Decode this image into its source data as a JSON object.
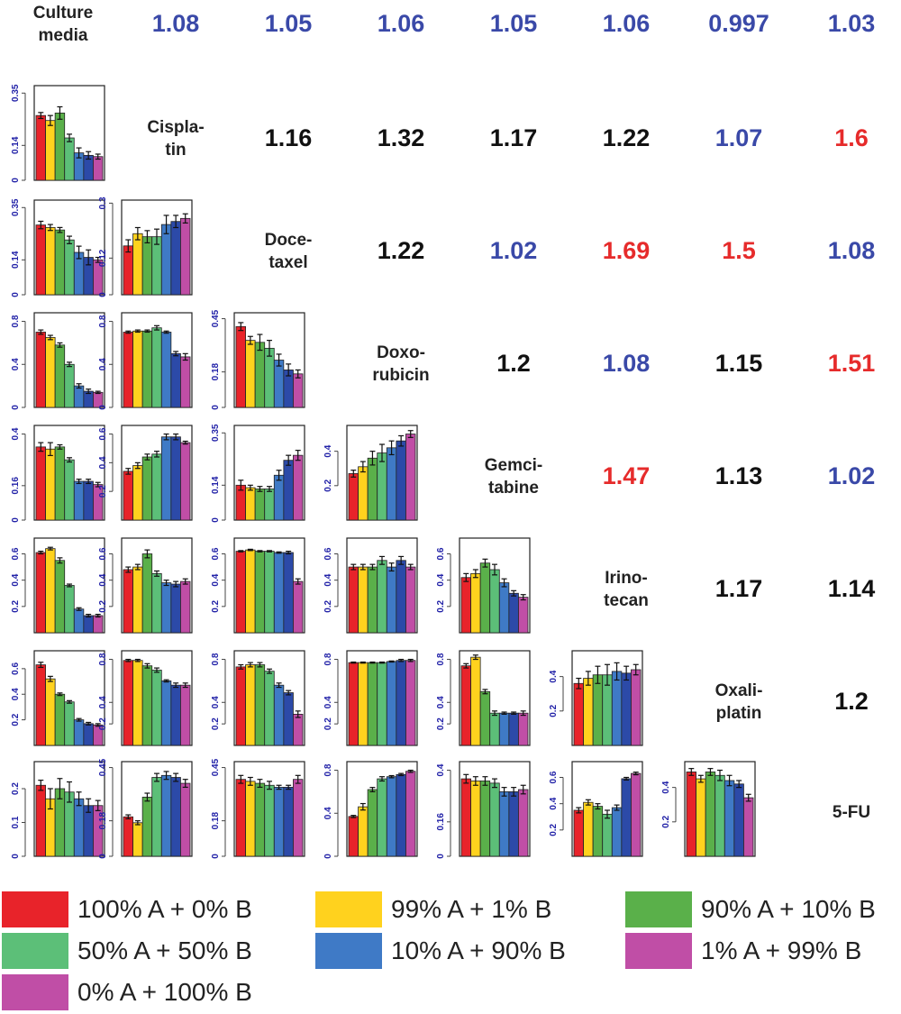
{
  "colors": {
    "ratio_blue": "#3a49a8",
    "ratio_black": "#111111",
    "ratio_red": "#e62b2b",
    "axis_text": "#2323a8",
    "bars": [
      "#e8232a",
      "#ffd21e",
      "#5ab04a",
      "#5cbf78",
      "#3f7ac6",
      "#2c4aa8",
      "#c04ea6"
    ]
  },
  "legend": [
    {
      "label": "100% A + 0% B",
      "color": "#e8232a"
    },
    {
      "label": "99% A + 1% B",
      "color": "#ffd21e"
    },
    {
      "label": "90% A + 10% B",
      "color": "#5ab04a"
    },
    {
      "label": "50% A + 50% B",
      "color": "#5cbf78"
    },
    {
      "label": "10% A + 90% B",
      "color": "#3f7ac6"
    },
    {
      "label": "1% A + 99% B",
      "color": "#c04ea6"
    },
    {
      "label": "0% A + 100% B",
      "color": "#c04ea6"
    }
  ],
  "chart_data": {
    "type": "bar",
    "title": "",
    "labels": [
      "Culture\nmedia",
      "Cispla-\ntin",
      "Doce-\ntaxel",
      "Doxo-\nrubicin",
      "Gemci-\ntabine",
      "Irino-\ntecan",
      "Oxali-\nplatin",
      "5-FU"
    ],
    "ratios": [
      {
        "row": 0,
        "col": 1,
        "text": "1.08",
        "color": "blue"
      },
      {
        "row": 0,
        "col": 2,
        "text": "1.05",
        "color": "blue"
      },
      {
        "row": 0,
        "col": 3,
        "text": "1.06",
        "color": "blue"
      },
      {
        "row": 0,
        "col": 4,
        "text": "1.05",
        "color": "blue"
      },
      {
        "row": 0,
        "col": 5,
        "text": "1.06",
        "color": "blue"
      },
      {
        "row": 0,
        "col": 6,
        "text": "0.997",
        "color": "blue"
      },
      {
        "row": 0,
        "col": 7,
        "text": "1.03",
        "color": "blue"
      },
      {
        "row": 1,
        "col": 2,
        "text": "1.16",
        "color": "black"
      },
      {
        "row": 1,
        "col": 3,
        "text": "1.32",
        "color": "black"
      },
      {
        "row": 1,
        "col": 4,
        "text": "1.17",
        "color": "black"
      },
      {
        "row": 1,
        "col": 5,
        "text": "1.22",
        "color": "black"
      },
      {
        "row": 1,
        "col": 6,
        "text": "1.07",
        "color": "blue"
      },
      {
        "row": 1,
        "col": 7,
        "text": "1.6",
        "color": "red"
      },
      {
        "row": 2,
        "col": 3,
        "text": "1.22",
        "color": "black"
      },
      {
        "row": 2,
        "col": 4,
        "text": "1.02",
        "color": "blue"
      },
      {
        "row": 2,
        "col": 5,
        "text": "1.69",
        "color": "red"
      },
      {
        "row": 2,
        "col": 6,
        "text": "1.5",
        "color": "red"
      },
      {
        "row": 2,
        "col": 7,
        "text": "1.08",
        "color": "blue"
      },
      {
        "row": 3,
        "col": 4,
        "text": "1.2",
        "color": "black"
      },
      {
        "row": 3,
        "col": 5,
        "text": "1.08",
        "color": "blue"
      },
      {
        "row": 3,
        "col": 6,
        "text": "1.15",
        "color": "black"
      },
      {
        "row": 3,
        "col": 7,
        "text": "1.51",
        "color": "red"
      },
      {
        "row": 4,
        "col": 5,
        "text": "1.47",
        "color": "red"
      },
      {
        "row": 4,
        "col": 6,
        "text": "1.13",
        "color": "black"
      },
      {
        "row": 4,
        "col": 7,
        "text": "1.02",
        "color": "blue"
      },
      {
        "row": 5,
        "col": 6,
        "text": "1.17",
        "color": "black"
      },
      {
        "row": 5,
        "col": 7,
        "text": "1.14",
        "color": "black"
      },
      {
        "row": 6,
        "col": 7,
        "text": "1.2",
        "color": "black"
      }
    ],
    "panels": [
      {
        "row": 1,
        "col": 0,
        "ymax": 0.38,
        "ticks": [
          "0",
          "0.14",
          "0.35"
        ],
        "tickv": [
          0,
          0.14,
          0.35
        ],
        "values": [
          0.26,
          0.24,
          0.27,
          0.17,
          0.11,
          0.1,
          0.095
        ],
        "errors": [
          0.012,
          0.02,
          0.025,
          0.015,
          0.02,
          0.015,
          0.01
        ]
      },
      {
        "row": 2,
        "col": 0,
        "ymax": 0.38,
        "ticks": [
          "0",
          "0.14",
          "0.35"
        ],
        "tickv": [
          0,
          0.14,
          0.35
        ],
        "values": [
          0.28,
          0.27,
          0.26,
          0.22,
          0.17,
          0.15,
          0.14
        ],
        "errors": [
          0.015,
          0.012,
          0.01,
          0.015,
          0.025,
          0.03,
          0.01
        ]
      },
      {
        "row": 2,
        "col": 1,
        "ymax": 0.31,
        "ticks": [
          "0",
          "0.12",
          "0.3"
        ],
        "tickv": [
          0,
          0.12,
          0.3
        ],
        "values": [
          0.16,
          0.2,
          0.19,
          0.19,
          0.23,
          0.24,
          0.25
        ],
        "errors": [
          0.02,
          0.02,
          0.02,
          0.025,
          0.03,
          0.02,
          0.015
        ]
      },
      {
        "row": 3,
        "col": 0,
        "ymax": 0.88,
        "ticks": [
          "0",
          "0.4",
          "0.8"
        ],
        "tickv": [
          0,
          0.4,
          0.8
        ],
        "values": [
          0.7,
          0.65,
          0.58,
          0.4,
          0.2,
          0.15,
          0.14
        ],
        "errors": [
          0.02,
          0.02,
          0.02,
          0.02,
          0.02,
          0.02,
          0.01
        ]
      },
      {
        "row": 3,
        "col": 1,
        "ymax": 0.88,
        "ticks": [
          "0",
          "0.4",
          "0.8"
        ],
        "tickv": [
          0,
          0.4,
          0.8
        ],
        "values": [
          0.7,
          0.71,
          0.71,
          0.74,
          0.7,
          0.5,
          0.47
        ],
        "errors": [
          0.01,
          0.01,
          0.01,
          0.02,
          0.01,
          0.02,
          0.03
        ]
      },
      {
        "row": 3,
        "col": 2,
        "ymax": 0.48,
        "ticks": [
          "0",
          "0.18",
          "0.45"
        ],
        "tickv": [
          0,
          0.18,
          0.45
        ],
        "values": [
          0.41,
          0.34,
          0.33,
          0.3,
          0.24,
          0.19,
          0.17
        ],
        "errors": [
          0.02,
          0.02,
          0.04,
          0.04,
          0.03,
          0.03,
          0.02
        ]
      },
      {
        "row": 4,
        "col": 0,
        "ymax": 0.44,
        "ticks": [
          "0",
          "0.16",
          "0.4"
        ],
        "tickv": [
          0,
          0.16,
          0.4
        ],
        "values": [
          0.34,
          0.33,
          0.34,
          0.28,
          0.18,
          0.18,
          0.165
        ],
        "errors": [
          0.02,
          0.03,
          0.01,
          0.01,
          0.01,
          0.01,
          0.01
        ]
      },
      {
        "row": 4,
        "col": 1,
        "ymax": 0.66,
        "ticks": [
          "0.2",
          "0.4",
          "0.6"
        ],
        "tickv": [
          0.2,
          0.4,
          0.6
        ],
        "values": [
          0.34,
          0.38,
          0.44,
          0.46,
          0.58,
          0.58,
          0.54
        ],
        "errors": [
          0.02,
          0.02,
          0.02,
          0.02,
          0.02,
          0.02,
          0.01
        ]
      },
      {
        "row": 4,
        "col": 2,
        "ymax": 0.38,
        "ticks": [
          "0",
          "0.14",
          "0.35"
        ],
        "tickv": [
          0,
          0.14,
          0.35
        ],
        "values": [
          0.14,
          0.13,
          0.125,
          0.125,
          0.18,
          0.24,
          0.26
        ],
        "errors": [
          0.02,
          0.01,
          0.01,
          0.01,
          0.02,
          0.02,
          0.02
        ]
      },
      {
        "row": 4,
        "col": 3,
        "ymax": 0.55,
        "ticks": [
          "0.2",
          "0.4"
        ],
        "tickv": [
          0.2,
          0.4
        ],
        "values": [
          0.27,
          0.31,
          0.36,
          0.39,
          0.42,
          0.46,
          0.5
        ],
        "errors": [
          0.02,
          0.03,
          0.04,
          0.05,
          0.04,
          0.03,
          0.02
        ]
      },
      {
        "row": 5,
        "col": 0,
        "ymax": 0.72,
        "ticks": [
          "0.2",
          "0.4",
          "0.6"
        ],
        "tickv": [
          0.2,
          0.4,
          0.6
        ],
        "values": [
          0.61,
          0.64,
          0.55,
          0.36,
          0.18,
          0.13,
          0.13
        ],
        "errors": [
          0.01,
          0.01,
          0.02,
          0.01,
          0.01,
          0.01,
          0.01
        ]
      },
      {
        "row": 5,
        "col": 1,
        "ymax": 0.72,
        "ticks": [
          "0.2",
          "0.4",
          "0.6"
        ],
        "tickv": [
          0.2,
          0.4,
          0.6
        ],
        "values": [
          0.48,
          0.5,
          0.6,
          0.45,
          0.38,
          0.37,
          0.39
        ],
        "errors": [
          0.02,
          0.02,
          0.03,
          0.02,
          0.02,
          0.02,
          0.02
        ]
      },
      {
        "row": 5,
        "col": 2,
        "ymax": 0.72,
        "ticks": [
          "0.2",
          "0.4",
          "0.6"
        ],
        "tickv": [
          0.2,
          0.4,
          0.6
        ],
        "values": [
          0.62,
          0.63,
          0.62,
          0.62,
          0.61,
          0.61,
          0.39
        ],
        "errors": [
          0.005,
          0.005,
          0.005,
          0.005,
          0.005,
          0.01,
          0.02
        ]
      },
      {
        "row": 5,
        "col": 3,
        "ymax": 0.72,
        "ticks": [
          "0.2",
          "0.4",
          "0.6"
        ],
        "tickv": [
          0.2,
          0.4,
          0.6
        ],
        "values": [
          0.5,
          0.5,
          0.5,
          0.55,
          0.5,
          0.55,
          0.5
        ],
        "errors": [
          0.02,
          0.02,
          0.02,
          0.03,
          0.03,
          0.03,
          0.02
        ]
      },
      {
        "row": 5,
        "col": 4,
        "ymax": 0.72,
        "ticks": [
          "0.2",
          "0.4",
          "0.6"
        ],
        "tickv": [
          0.2,
          0.4,
          0.6
        ],
        "values": [
          0.42,
          0.45,
          0.53,
          0.48,
          0.38,
          0.3,
          0.27
        ],
        "errors": [
          0.03,
          0.03,
          0.03,
          0.04,
          0.03,
          0.02,
          0.02
        ]
      },
      {
        "row": 6,
        "col": 0,
        "ymax": 0.74,
        "ticks": [
          "0.2",
          "0.4",
          "0.6"
        ],
        "tickv": [
          0.2,
          0.4,
          0.6
        ],
        "values": [
          0.63,
          0.52,
          0.4,
          0.34,
          0.2,
          0.17,
          0.16
        ],
        "errors": [
          0.02,
          0.02,
          0.01,
          0.01,
          0.01,
          0.01,
          0.01
        ]
      },
      {
        "row": 6,
        "col": 1,
        "ymax": 0.88,
        "ticks": [
          "0.2",
          "0.4",
          "0.8"
        ],
        "tickv": [
          0.2,
          0.4,
          0.8
        ],
        "values": [
          0.79,
          0.79,
          0.74,
          0.7,
          0.6,
          0.56,
          0.56
        ],
        "errors": [
          0.01,
          0.01,
          0.02,
          0.02,
          0.01,
          0.02,
          0.02
        ]
      },
      {
        "row": 6,
        "col": 2,
        "ymax": 0.88,
        "ticks": [
          "0.2",
          "0.4",
          "0.8"
        ],
        "tickv": [
          0.2,
          0.4,
          0.8
        ],
        "values": [
          0.73,
          0.75,
          0.75,
          0.69,
          0.56,
          0.49,
          0.29
        ],
        "errors": [
          0.02,
          0.02,
          0.02,
          0.02,
          0.02,
          0.02,
          0.03
        ]
      },
      {
        "row": 6,
        "col": 3,
        "ymax": 0.88,
        "ticks": [
          "0.2",
          "0.4",
          "0.8"
        ],
        "tickv": [
          0.2,
          0.4,
          0.8
        ],
        "values": [
          0.77,
          0.77,
          0.77,
          0.77,
          0.78,
          0.79,
          0.79
        ],
        "errors": [
          0.005,
          0.005,
          0.005,
          0.005,
          0.005,
          0.01,
          0.01
        ]
      },
      {
        "row": 6,
        "col": 4,
        "ymax": 0.88,
        "ticks": [
          "0.2",
          "0.4",
          "0.8"
        ],
        "tickv": [
          0.2,
          0.4,
          0.8
        ],
        "values": [
          0.74,
          0.82,
          0.5,
          0.3,
          0.3,
          0.3,
          0.3
        ],
        "errors": [
          0.02,
          0.02,
          0.02,
          0.02,
          0.01,
          0.01,
          0.02
        ]
      },
      {
        "row": 6,
        "col": 5,
        "ymax": 0.55,
        "ticks": [
          "0.2",
          "0.4"
        ],
        "tickv": [
          0.2,
          0.4
        ],
        "values": [
          0.36,
          0.39,
          0.41,
          0.41,
          0.43,
          0.42,
          0.44
        ],
        "errors": [
          0.03,
          0.04,
          0.05,
          0.06,
          0.05,
          0.04,
          0.03
        ]
      },
      {
        "row": 7,
        "col": 0,
        "ymax": 0.28,
        "ticks": [
          "0",
          "0.1",
          "0.2"
        ],
        "tickv": [
          0,
          0.1,
          0.2
        ],
        "values": [
          0.21,
          0.17,
          0.2,
          0.19,
          0.17,
          0.15,
          0.15
        ],
        "errors": [
          0.015,
          0.03,
          0.03,
          0.03,
          0.02,
          0.02,
          0.015
        ]
      },
      {
        "row": 7,
        "col": 1,
        "ymax": 0.48,
        "ticks": [
          "0",
          "0.18",
          "0.45"
        ],
        "tickv": [
          0,
          0.18,
          0.45
        ],
        "values": [
          0.2,
          0.17,
          0.3,
          0.4,
          0.41,
          0.4,
          0.37
        ],
        "errors": [
          0.01,
          0.01,
          0.02,
          0.02,
          0.02,
          0.02,
          0.02
        ]
      },
      {
        "row": 7,
        "col": 2,
        "ymax": 0.48,
        "ticks": [
          "0",
          "0.18",
          "0.45"
        ],
        "tickv": [
          0,
          0.18,
          0.45
        ],
        "values": [
          0.39,
          0.38,
          0.37,
          0.36,
          0.35,
          0.35,
          0.39
        ],
        "errors": [
          0.02,
          0.02,
          0.02,
          0.02,
          0.01,
          0.01,
          0.02
        ]
      },
      {
        "row": 7,
        "col": 3,
        "ymax": 0.88,
        "ticks": [
          "0",
          "0.4",
          "0.8"
        ],
        "tickv": [
          0,
          0.4,
          0.8
        ],
        "values": [
          0.37,
          0.46,
          0.62,
          0.72,
          0.74,
          0.76,
          0.79
        ],
        "errors": [
          0.01,
          0.03,
          0.02,
          0.02,
          0.01,
          0.01,
          0.01
        ]
      },
      {
        "row": 7,
        "col": 4,
        "ymax": 0.44,
        "ticks": [
          "0",
          "0.16",
          "0.4"
        ],
        "tickv": [
          0,
          0.16,
          0.4
        ],
        "values": [
          0.36,
          0.35,
          0.35,
          0.34,
          0.3,
          0.3,
          0.31
        ],
        "errors": [
          0.02,
          0.02,
          0.02,
          0.02,
          0.02,
          0.02,
          0.02
        ]
      },
      {
        "row": 7,
        "col": 5,
        "ymax": 0.72,
        "ticks": [
          "0.2",
          "0.4",
          "0.6"
        ],
        "tickv": [
          0.2,
          0.4,
          0.6
        ],
        "values": [
          0.35,
          0.41,
          0.38,
          0.32,
          0.37,
          0.59,
          0.63
        ],
        "errors": [
          0.02,
          0.02,
          0.02,
          0.03,
          0.02,
          0.01,
          0.01
        ]
      },
      {
        "row": 7,
        "col": 6,
        "ymax": 0.55,
        "ticks": [
          "0.2",
          "0.4"
        ],
        "tickv": [
          0.2,
          0.4
        ],
        "values": [
          0.49,
          0.45,
          0.49,
          0.47,
          0.44,
          0.42,
          0.34
        ],
        "errors": [
          0.02,
          0.02,
          0.02,
          0.03,
          0.03,
          0.02,
          0.02
        ]
      }
    ]
  }
}
